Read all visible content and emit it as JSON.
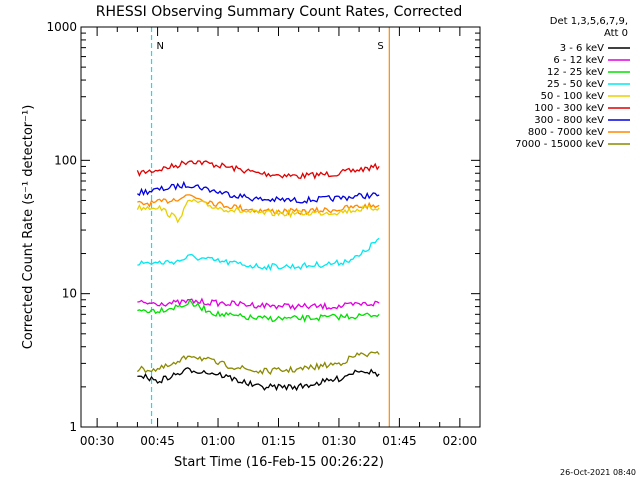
{
  "chart_data": {
    "type": "line",
    "title": "RHESSI Observing Summary Count Rates, Corrected",
    "xlabel": "Start Time (16-Feb-15 00:26:22)",
    "ylabel": "Corrected Count Rate (s⁻¹ detector⁻¹)",
    "yscale": "log",
    "ylim": [
      1,
      1000
    ],
    "xlim": [
      "00:26",
      "02:05"
    ],
    "x_ticks": [
      "00:30",
      "00:45",
      "01:00",
      "01:15",
      "01:30",
      "01:45",
      "02:00"
    ],
    "y_ticks": [
      "1",
      "10",
      "100",
      "1000"
    ],
    "grid": false,
    "legend": {
      "placement": "right",
      "header": [
        "Det 1,3,5,6,7,9,",
        "Att 0"
      ],
      "entries": [
        {
          "label": "3 - 6 keV",
          "color": "#000000"
        },
        {
          "label": "6 - 12 keV",
          "color": "#e000e0"
        },
        {
          "label": "12 - 25 keV",
          "color": "#00e000"
        },
        {
          "label": "25 - 50 keV",
          "color": "#00e8f0"
        },
        {
          "label": "50 - 100 keV",
          "color": "#e8d000"
        },
        {
          "label": "100 - 300 keV",
          "color": "#e00000"
        },
        {
          "label": "300 - 800 keV",
          "color": "#0000e0"
        },
        {
          "label": "800 - 7000 keV",
          "color": "#ff8800"
        },
        {
          "label": "7000 - 15000 keV",
          "color": "#8a8a00"
        }
      ]
    },
    "series": [
      {
        "name": "100 - 300 keV",
        "color": "#e00000",
        "x": [
          "00:40",
          "00:45",
          "00:50",
          "00:53",
          "01:00",
          "01:10",
          "01:20",
          "01:30",
          "01:35",
          "01:40"
        ],
        "y": [
          80,
          85,
          92,
          100,
          92,
          80,
          76,
          80,
          85,
          90
        ]
      },
      {
        "name": "300 - 800 keV",
        "color": "#0000e0",
        "x": [
          "00:40",
          "00:45",
          "00:50",
          "00:53",
          "01:00",
          "01:10",
          "01:20",
          "01:30",
          "01:35",
          "01:40"
        ],
        "y": [
          57,
          60,
          64,
          66,
          58,
          51,
          50,
          52,
          54,
          55
        ]
      },
      {
        "name": "800 - 7000 keV",
        "color": "#ff8800",
        "x": [
          "00:40",
          "00:45",
          "00:50",
          "00:53",
          "01:00",
          "01:10",
          "01:20",
          "01:30",
          "01:35",
          "01:40"
        ],
        "y": [
          47,
          48,
          52,
          55,
          47,
          42,
          41,
          43,
          45,
          46
        ]
      },
      {
        "name": "50 - 100 keV",
        "color": "#e8d000",
        "x": [
          "00:40",
          "00:45",
          "00:50",
          "00:53",
          "01:00",
          "01:10",
          "01:20",
          "01:30",
          "01:35",
          "01:40"
        ],
        "y": [
          44,
          45,
          36,
          50,
          44,
          40,
          40,
          41,
          43,
          44
        ]
      },
      {
        "name": "25 - 50 keV",
        "color": "#00e8f0",
        "x": [
          "00:40",
          "00:45",
          "00:50",
          "00:53",
          "01:00",
          "01:10",
          "01:20",
          "01:30",
          "01:35",
          "01:40"
        ],
        "y": [
          17,
          17,
          17.5,
          19,
          17.5,
          16,
          16,
          17,
          19,
          26
        ]
      },
      {
        "name": "6 - 12 keV",
        "color": "#e000e0",
        "x": [
          "00:40",
          "00:45",
          "00:50",
          "00:53",
          "01:00",
          "01:10",
          "01:20",
          "01:30",
          "01:35",
          "01:40"
        ],
        "y": [
          8.5,
          8.5,
          8.5,
          8.8,
          8.5,
          8.2,
          8,
          8,
          8.3,
          8.5
        ]
      },
      {
        "name": "12 - 25 keV",
        "color": "#00e000",
        "x": [
          "00:40",
          "00:45",
          "00:50",
          "00:53",
          "01:00",
          "01:10",
          "01:20",
          "01:30",
          "01:35",
          "01:40"
        ],
        "y": [
          7.5,
          7.5,
          8,
          8.5,
          7,
          6.5,
          6.5,
          6.7,
          6.8,
          7
        ]
      },
      {
        "name": "7000 - 15000 keV",
        "color": "#8a8a00",
        "x": [
          "00:40",
          "00:45",
          "00:50",
          "00:53",
          "01:00",
          "01:10",
          "01:20",
          "01:30",
          "01:35",
          "01:40"
        ],
        "y": [
          2.7,
          2.7,
          3,
          3.5,
          3,
          2.6,
          2.7,
          3,
          3.5,
          3.5
        ]
      },
      {
        "name": "3 - 6 keV",
        "color": "#000000",
        "x": [
          "00:40",
          "00:45",
          "00:50",
          "00:53",
          "01:00",
          "01:10",
          "01:20",
          "01:30",
          "01:35",
          "01:40"
        ],
        "y": [
          2.5,
          2.2,
          2.5,
          2.7,
          2.5,
          2,
          2,
          2.3,
          2.7,
          2.5
        ]
      }
    ],
    "annotations": [
      {
        "label": "N",
        "color": "#00e8f0",
        "x": "00:43:30",
        "style": "dashed"
      },
      {
        "label": "S",
        "color": "#ff8800",
        "x": "01:42:30",
        "style": "solid"
      }
    ],
    "footer_timestamp": "26-Oct-2021 08:40"
  }
}
